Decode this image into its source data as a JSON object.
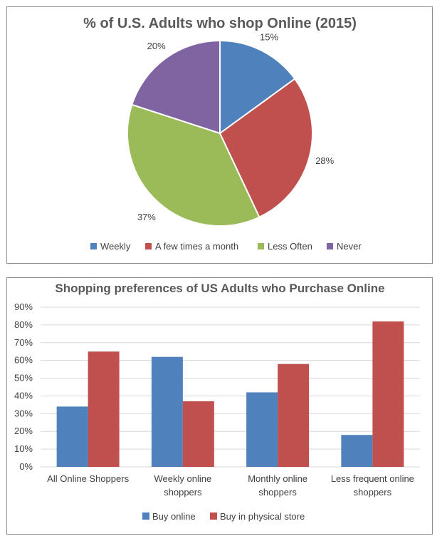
{
  "chart_data": [
    {
      "type": "pie",
      "title": "% of U.S. Adults who shop Online (2015)",
      "categories": [
        "Weekly",
        "A few times a month",
        "Less Often",
        "Never"
      ],
      "values": [
        15,
        28,
        37,
        20
      ],
      "data_labels": [
        "15%",
        "28%",
        "37%",
        "20%"
      ],
      "colors": [
        "#4f81bd",
        "#c0504d",
        "#9bbb59",
        "#8064a2"
      ],
      "legend": "bottom"
    },
    {
      "type": "bar",
      "title": "Shopping preferences of US Adults who Purchase Online",
      "categories": [
        [
          "All Online Shoppers"
        ],
        [
          "Weekly online",
          "shoppers"
        ],
        [
          "Monthly online",
          "shoppers"
        ],
        [
          "Less frequent online",
          "shoppers"
        ]
      ],
      "series": [
        {
          "name": "Buy online",
          "values": [
            34,
            62,
            42,
            18
          ],
          "color": "#4f81bd"
        },
        {
          "name": "Buy in physical store",
          "values": [
            65,
            37,
            58,
            82
          ],
          "color": "#c0504d"
        }
      ],
      "ylim": [
        0,
        90
      ],
      "yticks": [
        0,
        10,
        20,
        30,
        40,
        50,
        60,
        70,
        80,
        90
      ],
      "ytick_labels": [
        "0%",
        "10%",
        "20%",
        "30%",
        "40%",
        "50%",
        "60%",
        "70%",
        "80%",
        "90%"
      ],
      "grid": true,
      "legend": "bottom"
    }
  ]
}
